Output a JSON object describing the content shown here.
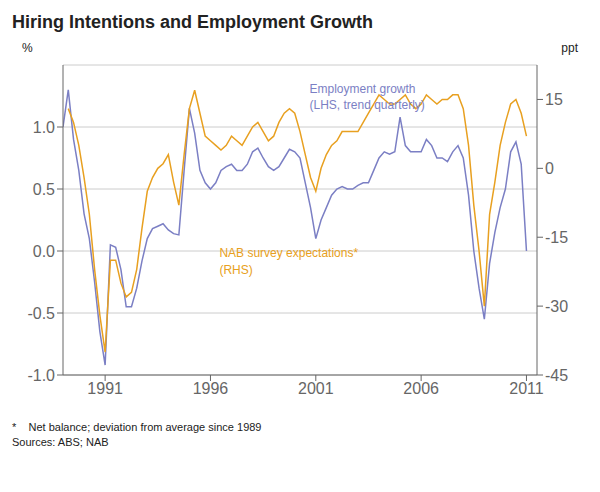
{
  "chart_data": {
    "type": "line",
    "title": "Hiring Intentions and Employment Growth",
    "ylabel": "%",
    "y2label": "ppt",
    "annotations": [
      "*    Net balance; deviation from average since 1989",
      "Sources: ABS; NAB"
    ],
    "xlim": [
      1989.0,
      2011.5
    ],
    "xticks": [
      1991,
      1996,
      2001,
      2006,
      2011
    ],
    "ylim": [
      -1.0,
      1.5
    ],
    "yticks": [
      {
        "value": -1.0,
        "label": "-1.0"
      },
      -0.5,
      {
        "value": 0.0,
        "label": "0.0"
      },
      0.5,
      {
        "value": 1.0,
        "label": "1.0"
      }
    ],
    "y2lim": [
      -45.0,
      22.5
    ],
    "y2ticks": [
      -45,
      -30,
      -15,
      0,
      15
    ],
    "grid": true,
    "series": [
      {
        "name": "Employment growth\n(LHS, trend quarterly)",
        "color": "#7b7fc4",
        "x": [
          1989.0,
          1989.25,
          1989.5,
          1989.75,
          1990.0,
          1990.25,
          1990.5,
          1990.75,
          1991.0,
          1991.25,
          1991.5,
          1991.75,
          1992.0,
          1992.25,
          1992.5,
          1992.75,
          1993.0,
          1993.25,
          1993.5,
          1993.75,
          1994.0,
          1994.25,
          1994.5,
          1994.75,
          1995.0,
          1995.25,
          1995.5,
          1995.75,
          1996.0,
          1996.25,
          1996.5,
          1996.75,
          1997.0,
          1997.25,
          1997.5,
          1997.75,
          1998.0,
          1998.25,
          1998.5,
          1998.75,
          1999.0,
          1999.25,
          1999.5,
          1999.75,
          2000.0,
          2000.25,
          2000.5,
          2000.75,
          2001.0,
          2001.25,
          2001.5,
          2001.75,
          2002.0,
          2002.25,
          2002.5,
          2002.75,
          2003.0,
          2003.25,
          2003.5,
          2003.75,
          2004.0,
          2004.25,
          2004.5,
          2004.75,
          2005.0,
          2005.25,
          2005.5,
          2005.75,
          2006.0,
          2006.25,
          2006.5,
          2006.75,
          2007.0,
          2007.25,
          2007.5,
          2007.75,
          2008.0,
          2008.25,
          2008.5,
          2008.75,
          2009.0,
          2009.25,
          2009.5,
          2009.75,
          2010.0,
          2010.25,
          2010.5,
          2010.75,
          2011.0
        ],
        "values": [
          1.0,
          1.3,
          0.9,
          0.65,
          0.3,
          0.1,
          -0.25,
          -0.65,
          -0.92,
          0.05,
          0.03,
          -0.15,
          -0.45,
          -0.45,
          -0.3,
          -0.08,
          0.1,
          0.18,
          0.2,
          0.22,
          0.17,
          0.14,
          0.13,
          0.65,
          1.15,
          0.95,
          0.65,
          0.55,
          0.5,
          0.55,
          0.65,
          0.68,
          0.7,
          0.65,
          0.65,
          0.7,
          0.8,
          0.83,
          0.75,
          0.68,
          0.65,
          0.68,
          0.75,
          0.82,
          0.8,
          0.75,
          0.55,
          0.35,
          0.1,
          0.25,
          0.35,
          0.45,
          0.5,
          0.52,
          0.5,
          0.5,
          0.53,
          0.55,
          0.55,
          0.65,
          0.75,
          0.8,
          0.78,
          0.8,
          1.08,
          0.85,
          0.8,
          0.8,
          0.8,
          0.9,
          0.85,
          0.75,
          0.75,
          0.72,
          0.8,
          0.85,
          0.75,
          0.45,
          0.0,
          -0.3,
          -0.55,
          -0.1,
          0.15,
          0.35,
          0.5,
          0.8,
          0.88,
          0.7,
          0.0
        ]
      },
      {
        "name": "NAB survey expectations*\n(RHS)",
        "color": "#e8a020",
        "axis": "y2",
        "x": [
          1989.25,
          1989.5,
          1989.75,
          1990.0,
          1990.25,
          1990.5,
          1990.75,
          1991.0,
          1991.25,
          1991.5,
          1991.75,
          1992.0,
          1992.25,
          1992.5,
          1992.75,
          1993.0,
          1993.25,
          1993.5,
          1993.75,
          1994.0,
          1994.25,
          1994.5,
          1994.75,
          1995.0,
          1995.25,
          1995.5,
          1995.75,
          1996.0,
          1996.25,
          1996.5,
          1996.75,
          1997.0,
          1997.25,
          1997.5,
          1997.75,
          1998.0,
          1998.25,
          1998.5,
          1998.75,
          1999.0,
          1999.25,
          1999.5,
          1999.75,
          2000.0,
          2000.25,
          2000.5,
          2000.75,
          2001.0,
          2001.25,
          2001.5,
          2001.75,
          2002.0,
          2002.25,
          2002.5,
          2002.75,
          2003.0,
          2003.25,
          2003.5,
          2003.75,
          2004.0,
          2004.25,
          2004.5,
          2004.75,
          2005.0,
          2005.25,
          2005.5,
          2005.75,
          2006.0,
          2006.25,
          2006.5,
          2006.75,
          2007.0,
          2007.25,
          2007.5,
          2007.75,
          2008.0,
          2008.25,
          2008.5,
          2008.75,
          2009.0,
          2009.25,
          2009.5,
          2009.75,
          2010.0,
          2010.25,
          2010.5,
          2010.75,
          2011.0
        ],
        "values": [
          13.0,
          10.0,
          5.0,
          -2.0,
          -10.0,
          -22.0,
          -32.0,
          -40.0,
          -20.0,
          -20.0,
          -25.0,
          -28.0,
          -27.0,
          -22.0,
          -13.0,
          -5.0,
          -2.0,
          0.0,
          1.0,
          3.0,
          -3.0,
          -8.0,
          3.0,
          13.0,
          17.0,
          12.0,
          7.0,
          6.0,
          5.0,
          4.0,
          5.0,
          7.0,
          6.0,
          5.0,
          7.0,
          9.0,
          10.0,
          8.0,
          6.0,
          7.0,
          10.0,
          12.0,
          13.0,
          12.0,
          8.0,
          3.0,
          -2.0,
          -5.0,
          0.0,
          3.0,
          5.0,
          6.0,
          8.0,
          8.0,
          8.0,
          8.0,
          10.0,
          12.0,
          14.0,
          16.0,
          15.0,
          14.0,
          14.0,
          15.0,
          16.0,
          14.0,
          13.0,
          14.0,
          16.0,
          15.0,
          14.0,
          15.0,
          15.0,
          16.0,
          16.0,
          13.0,
          5.0,
          -8.0,
          -18.0,
          -30.0,
          -10.0,
          -3.0,
          5.0,
          10.0,
          14.0,
          15.0,
          12.0,
          7.0
        ]
      }
    ]
  }
}
